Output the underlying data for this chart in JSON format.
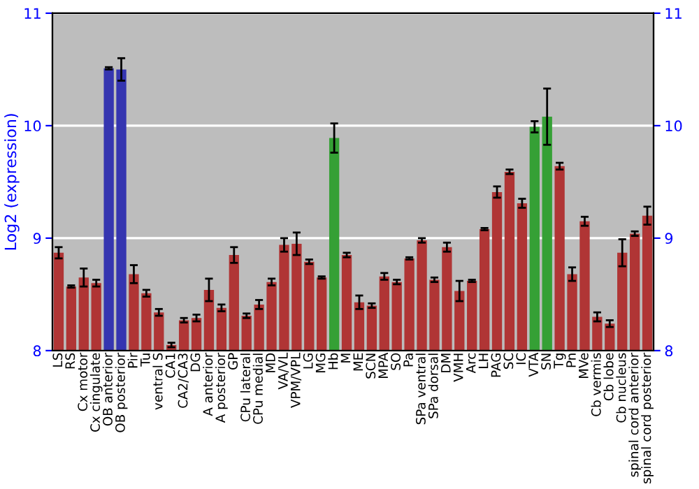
{
  "chart_data": {
    "type": "bar",
    "ylabel": "Log2 (expression)",
    "categories": [
      "LS",
      "RS",
      "Cx motor",
      "Cx cingulate",
      "OB anterior",
      "OB posterior",
      "Pir",
      "Tu",
      "ventral S",
      "CA1",
      "CA2/CA3",
      "DG",
      "A anterior",
      "A posterior",
      "GP",
      "CPu lateral",
      "CPu medial",
      "MD",
      "VA/VL",
      "VPM/VPL",
      "LG",
      "MG",
      "Hb",
      "M",
      "ME",
      "SCN",
      "MPA",
      "SO",
      "Pa",
      "SPa ventral",
      "SPa dorsal",
      "DM",
      "VMH",
      "Arc",
      "LH",
      "PAG",
      "SC",
      "IC",
      "VTA",
      "SN",
      "Tg",
      "Pn",
      "MVe",
      "Cb vermis",
      "Cb lobe",
      "Cb nucleus",
      "spinal cord anterior",
      "spinal cord posterior"
    ],
    "values": [
      8.87,
      8.57,
      8.65,
      8.6,
      10.51,
      10.5,
      8.68,
      8.51,
      8.34,
      8.05,
      8.27,
      8.29,
      8.54,
      8.38,
      8.85,
      8.31,
      8.41,
      8.61,
      8.94,
      8.95,
      8.79,
      8.65,
      9.89,
      8.85,
      8.43,
      8.4,
      8.66,
      8.61,
      8.82,
      8.98,
      8.63,
      8.92,
      8.53,
      8.62,
      9.08,
      9.41,
      9.59,
      9.31,
      9.99,
      10.08,
      9.64,
      8.68,
      9.15,
      8.3,
      8.24,
      8.87,
      9.04,
      9.2
    ],
    "errors": [
      0.05,
      0.01,
      0.08,
      0.03,
      0.01,
      0.1,
      0.08,
      0.03,
      0.03,
      0.02,
      0.02,
      0.03,
      0.1,
      0.03,
      0.07,
      0.02,
      0.04,
      0.03,
      0.06,
      0.1,
      0.02,
      0.01,
      0.13,
      0.02,
      0.06,
      0.02,
      0.03,
      0.02,
      0.01,
      0.02,
      0.02,
      0.04,
      0.09,
      0.01,
      0.01,
      0.05,
      0.02,
      0.04,
      0.05,
      0.25,
      0.03,
      0.06,
      0.04,
      0.04,
      0.03,
      0.12,
      0.02,
      0.08
    ],
    "colors": [
      "#b03535",
      "#b03535",
      "#b03535",
      "#b03535",
      "#3535b0",
      "#3535b0",
      "#b03535",
      "#b03535",
      "#b03535",
      "#b03535",
      "#b03535",
      "#b03535",
      "#b03535",
      "#b03535",
      "#b03535",
      "#b03535",
      "#b03535",
      "#b03535",
      "#b03535",
      "#b03535",
      "#b03535",
      "#b03535",
      "#35a035",
      "#b03535",
      "#b03535",
      "#b03535",
      "#b03535",
      "#b03535",
      "#b03535",
      "#b03535",
      "#b03535",
      "#b03535",
      "#b03535",
      "#b03535",
      "#b03535",
      "#b03535",
      "#b03535",
      "#b03535",
      "#35a035",
      "#35a035",
      "#b03535",
      "#b03535",
      "#b03535",
      "#b03535",
      "#b03535",
      "#b03535",
      "#b03535",
      "#b03535"
    ],
    "ylim": [
      8,
      11
    ],
    "yticks": [
      8,
      9,
      10,
      11
    ],
    "y2lim": [
      8,
      11
    ],
    "y2ticks": [
      8,
      9,
      10,
      11
    ],
    "grid": "y"
  }
}
